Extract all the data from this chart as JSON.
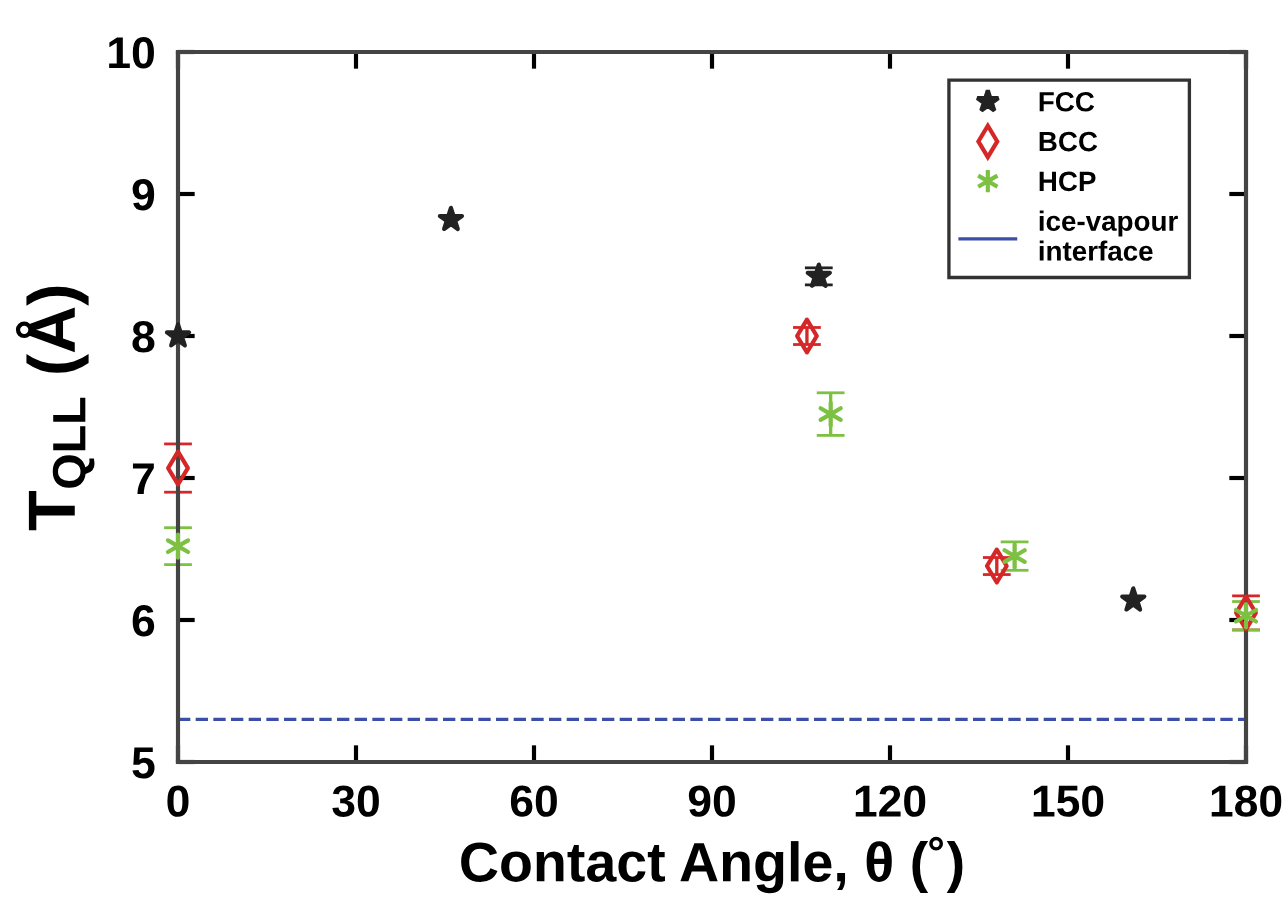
{
  "chart_data": {
    "type": "scatter",
    "xlabel": "Contact Angle, θ (˚)",
    "ylabel": "T$_{QLL}$ (Å)",
    "xlim": [
      0,
      180
    ],
    "ylim": [
      5,
      10
    ],
    "xticks": [
      0,
      30,
      60,
      90,
      120,
      150,
      180
    ],
    "yticks": [
      5,
      6,
      7,
      8,
      9,
      10
    ],
    "grid": false,
    "legend": "top right",
    "series": [
      {
        "name": "FCC",
        "color": "#222222",
        "marker": "star",
        "x": [
          0,
          46,
          108,
          161
        ],
        "values": [
          8.0,
          8.82,
          8.42,
          6.14
        ],
        "errors": [
          null,
          null,
          0.06,
          null
        ]
      },
      {
        "name": "BCC",
        "color": "#d62728",
        "marker": "diamond",
        "x": [
          0,
          106,
          138,
          180
        ],
        "values": [
          7.07,
          8.0,
          6.38,
          6.05
        ],
        "errors": [
          0.17,
          0.06,
          0.06,
          0.12
        ]
      },
      {
        "name": "HCP",
        "color": "#7dc142",
        "marker": "cross",
        "x": [
          0,
          110,
          141,
          180
        ],
        "values": [
          6.52,
          7.45,
          6.45,
          6.03
        ],
        "errors": [
          0.13,
          0.15,
          0.1,
          0.1
        ]
      }
    ],
    "ref_lines": [
      {
        "axis": "y",
        "value": 5.3,
        "label": "ice-vapour\ninterface",
        "color": "#3b4fa8",
        "line_style": "dashed"
      }
    ]
  }
}
